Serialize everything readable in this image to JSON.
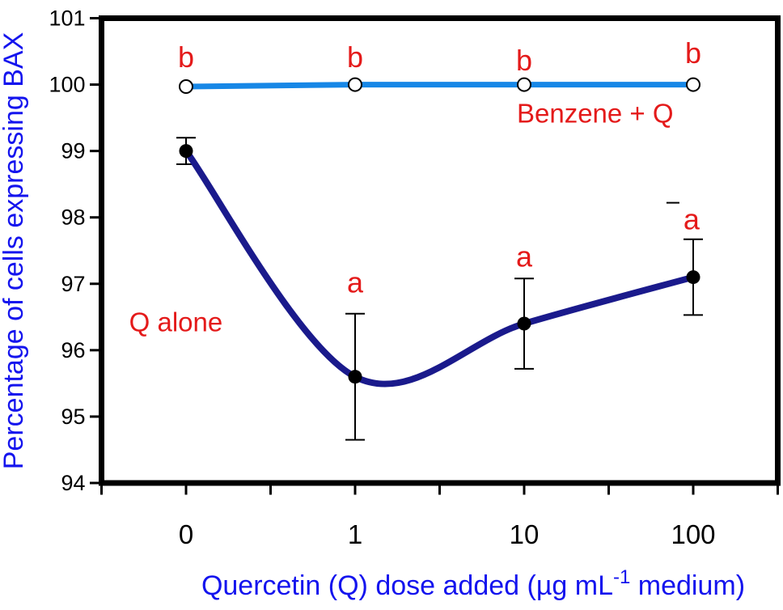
{
  "chart_data": {
    "type": "line",
    "title": "",
    "ylabel": "Percentage of cells expressing BAX",
    "xlabel_parts": {
      "pre": "Quercetin (Q) dose added (µg mL",
      "sup": "-1",
      "post": " medium)"
    },
    "categories": [
      "0",
      "1",
      "10",
      "100"
    ],
    "ylim": [
      94,
      101
    ],
    "yticks": [
      94,
      95,
      96,
      97,
      98,
      99,
      100,
      101
    ],
    "grid": false,
    "legend_position": "annotated-inline",
    "series": [
      {
        "name": "Benzene + Q",
        "values": [
          99.97,
          100,
          100,
          100
        ],
        "errors": [
          0,
          0,
          0,
          0
        ],
        "color": "#1787e6",
        "marker": "open-circle",
        "line": "straight"
      },
      {
        "name": "Q alone",
        "values": [
          99.0,
          95.6,
          96.4,
          97.1
        ],
        "errors": [
          0.2,
          0.95,
          0.68,
          0.57
        ],
        "color": "#1a1a8c",
        "marker": "filled-circle",
        "line": "spline"
      }
    ],
    "annotations": [
      {
        "kind": "letter",
        "text": "b",
        "xi": 0,
        "val": 100.42
      },
      {
        "kind": "letter",
        "text": "b",
        "xi": 1,
        "val": 100.42
      },
      {
        "kind": "letter",
        "text": "b",
        "xi": 2,
        "val": 100.37
      },
      {
        "kind": "letter",
        "text": "b",
        "xi": 3,
        "val": 100.48
      },
      {
        "kind": "letter",
        "text": "a",
        "xi": 1,
        "val": 97.03
      },
      {
        "kind": "letter",
        "text": "a",
        "xi": 2,
        "val": 97.42
      },
      {
        "kind": "letter",
        "text": "a",
        "xi": 2.99,
        "val": 97.98
      },
      {
        "kind": "label",
        "text": "Q alone",
        "xi": -0.06,
        "val": 96.42
      },
      {
        "kind": "label",
        "text": "Benzene + Q",
        "xi": 2.42,
        "val": 99.56
      },
      {
        "kind": "dash",
        "text": "",
        "xi": 2.88,
        "val": 98.22
      }
    ]
  },
  "colors": {
    "axis_text": "#1414ee",
    "tick_text": "#000000",
    "frame": "#000000",
    "annotation": "#e41a1a",
    "benzene_line": "#1787e6",
    "qalone_line": "#1a1a8c",
    "marker_stroke": "#000000",
    "background": "#ffffff"
  }
}
